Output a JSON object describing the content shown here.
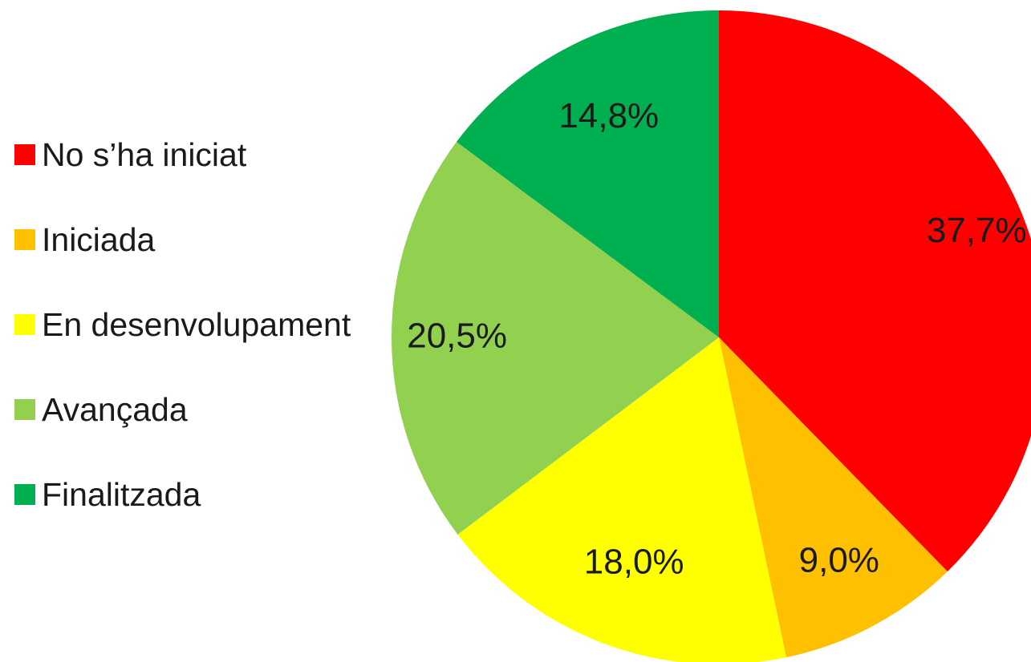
{
  "chart_data": {
    "type": "pie",
    "title": "",
    "labels": [
      "No s’ha iniciat",
      "Iniciada",
      "En desenvolupament",
      "Avançada",
      "Finalitzada"
    ],
    "values": [
      37.7,
      9.0,
      18.0,
      20.5,
      14.8
    ],
    "data_labels": [
      "37,7%",
      "9,0%",
      "18,0%",
      "20,5%",
      "14,8%"
    ],
    "colors": [
      "#ff0000",
      "#ffc000",
      "#ffff00",
      "#92d050",
      "#00b050"
    ],
    "start_angle": "12 o'clock",
    "direction": "clockwise",
    "legend_position": "left"
  }
}
